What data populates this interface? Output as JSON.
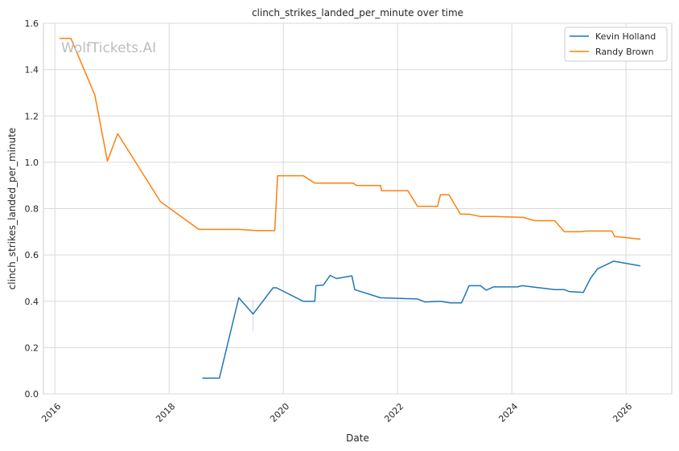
{
  "chart_data": {
    "type": "line",
    "title": "clinch_strikes_landed_per_minute over time",
    "xlabel": "Date",
    "ylabel": "clinch_strikes_landed_per_minute",
    "xlim": [
      2015.8,
      2026.8
    ],
    "ylim": [
      0,
      1.6
    ],
    "x_ticks": [
      2016,
      2018,
      2020,
      2022,
      2024,
      2026
    ],
    "y_ticks": [
      "0.0",
      "0.2",
      "0.4",
      "0.6",
      "0.8",
      "1.0",
      "1.2",
      "1.4",
      "1.6"
    ],
    "grid": true,
    "legend_position": "top-right",
    "watermark": "WolfTickets.AI",
    "series": [
      {
        "name": "Kevin Holland",
        "color": "#1f77b4",
        "points": [
          [
            2018.58,
            0.068
          ],
          [
            2018.88,
            0.068
          ],
          [
            2019.22,
            0.415
          ],
          [
            2019.47,
            0.345
          ],
          [
            2019.82,
            0.458
          ],
          [
            2019.88,
            0.458
          ],
          [
            2020.35,
            0.4
          ],
          [
            2020.55,
            0.4
          ],
          [
            2020.57,
            0.468
          ],
          [
            2020.7,
            0.47
          ],
          [
            2020.82,
            0.512
          ],
          [
            2020.93,
            0.498
          ],
          [
            2021.2,
            0.51
          ],
          [
            2021.25,
            0.45
          ],
          [
            2021.7,
            0.415
          ],
          [
            2022.35,
            0.41
          ],
          [
            2022.48,
            0.397
          ],
          [
            2022.75,
            0.4
          ],
          [
            2022.92,
            0.393
          ],
          [
            2023.12,
            0.393
          ],
          [
            2023.25,
            0.467
          ],
          [
            2023.45,
            0.467
          ],
          [
            2023.55,
            0.448
          ],
          [
            2023.68,
            0.462
          ],
          [
            2024.1,
            0.462
          ],
          [
            2024.18,
            0.467
          ],
          [
            2024.75,
            0.45
          ],
          [
            2024.92,
            0.45
          ],
          [
            2025.0,
            0.442
          ],
          [
            2025.25,
            0.438
          ],
          [
            2025.38,
            0.5
          ],
          [
            2025.5,
            0.54
          ],
          [
            2025.78,
            0.573
          ],
          [
            2026.25,
            0.553
          ]
        ]
      },
      {
        "name": "Randy Brown",
        "color": "#ff7f0e",
        "points": [
          [
            2016.08,
            1.535
          ],
          [
            2016.28,
            1.535
          ],
          [
            2016.7,
            1.29
          ],
          [
            2016.92,
            1.005
          ],
          [
            2017.1,
            1.123
          ],
          [
            2017.85,
            0.83
          ],
          [
            2018.52,
            0.71
          ],
          [
            2019.22,
            0.71
          ],
          [
            2019.55,
            0.705
          ],
          [
            2019.85,
            0.705
          ],
          [
            2019.9,
            0.942
          ],
          [
            2020.35,
            0.942
          ],
          [
            2020.55,
            0.91
          ],
          [
            2021.22,
            0.91
          ],
          [
            2021.28,
            0.9
          ],
          [
            2021.7,
            0.9
          ],
          [
            2021.72,
            0.877
          ],
          [
            2022.18,
            0.877
          ],
          [
            2022.35,
            0.81
          ],
          [
            2022.7,
            0.81
          ],
          [
            2022.75,
            0.86
          ],
          [
            2022.9,
            0.86
          ],
          [
            2023.1,
            0.776
          ],
          [
            2023.25,
            0.776
          ],
          [
            2023.45,
            0.766
          ],
          [
            2023.7,
            0.766
          ],
          [
            2024.2,
            0.762
          ],
          [
            2024.4,
            0.748
          ],
          [
            2024.75,
            0.748
          ],
          [
            2024.92,
            0.7
          ],
          [
            2025.2,
            0.7
          ],
          [
            2025.3,
            0.703
          ],
          [
            2025.75,
            0.703
          ],
          [
            2025.8,
            0.68
          ],
          [
            2026.25,
            0.668
          ]
        ]
      }
    ]
  }
}
